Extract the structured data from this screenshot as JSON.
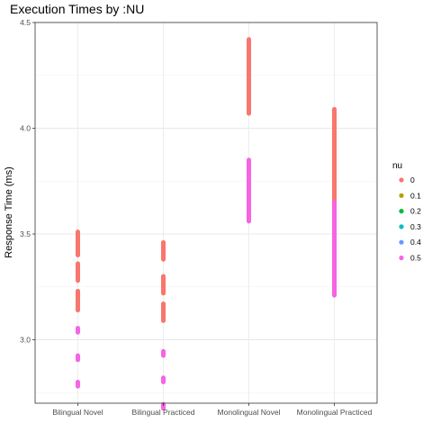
{
  "chart_data": {
    "type": "scatter",
    "title": "Execution Times by :NU",
    "xlabel": "",
    "ylabel": "Response Time (ms)",
    "categories": [
      "Bilingual Novel",
      "Bilingual Practiced",
      "Monolingual Novel",
      "Monolingual Practiced"
    ],
    "ylim": [
      2.7,
      4.5
    ],
    "yticks": [
      "3.0",
      "3.5",
      "4.0",
      "4.5"
    ],
    "grid": true,
    "legend": {
      "title": "nu",
      "placement": "right",
      "entries": [
        {
          "label": "0",
          "color": "#F8766D"
        },
        {
          "label": "0.1",
          "color": "#B79F00"
        },
        {
          "label": "0.2",
          "color": "#00BA38"
        },
        {
          "label": "0.3",
          "color": "#00BFC4"
        },
        {
          "label": "0.4",
          "color": "#619CFF"
        },
        {
          "label": "0.5",
          "color": "#F564E3"
        }
      ]
    },
    "series": [
      {
        "nu": "0",
        "color": "#F8766D",
        "segments": [
          {
            "category": "Bilingual Novel",
            "y_min": 3.4,
            "y_max": 3.51
          },
          {
            "category": "Bilingual Novel",
            "y_min": 3.28,
            "y_max": 3.36
          },
          {
            "category": "Bilingual Novel",
            "y_min": 3.14,
            "y_max": 3.23
          },
          {
            "category": "Bilingual Practiced",
            "y_min": 3.38,
            "y_max": 3.46
          },
          {
            "category": "Bilingual Practiced",
            "y_min": 3.22,
            "y_max": 3.3
          },
          {
            "category": "Bilingual Practiced",
            "y_min": 3.09,
            "y_max": 3.17
          },
          {
            "category": "Monolingual Novel",
            "y_min": 4.07,
            "y_max": 4.42
          },
          {
            "category": "Monolingual Practiced",
            "y_min": 3.63,
            "y_max": 4.09
          }
        ]
      },
      {
        "nu": "0.5",
        "color": "#F564E3",
        "segments": [
          {
            "category": "Bilingual Novel",
            "y_min": 3.035,
            "y_max": 3.055
          },
          {
            "category": "Bilingual Novel",
            "y_min": 2.905,
            "y_max": 2.925
          },
          {
            "category": "Bilingual Novel",
            "y_min": 2.78,
            "y_max": 2.8
          },
          {
            "category": "Bilingual Practiced",
            "y_min": 2.925,
            "y_max": 2.945
          },
          {
            "category": "Bilingual Practiced",
            "y_min": 2.8,
            "y_max": 2.82
          },
          {
            "category": "Bilingual Practiced",
            "y_min": 2.675,
            "y_max": 2.695
          },
          {
            "category": "Monolingual Novel",
            "y_min": 3.56,
            "y_max": 3.85
          },
          {
            "category": "Monolingual Practiced",
            "y_min": 3.21,
            "y_max": 3.65
          }
        ]
      }
    ]
  }
}
